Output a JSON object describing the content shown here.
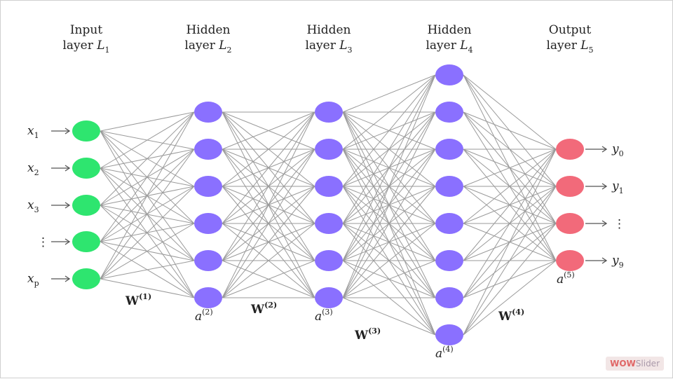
{
  "layers": [
    {
      "title": "Input",
      "subtitle": "layer",
      "symbol": "L",
      "sub": "1",
      "color": "#2ee56f",
      "nodes": 5
    },
    {
      "title": "Hidden",
      "subtitle": "layer",
      "symbol": "L",
      "sub": "2",
      "color": "#8a70ff",
      "nodes": 6
    },
    {
      "title": "Hidden",
      "subtitle": "layer",
      "symbol": "L",
      "sub": "3",
      "color": "#8a70ff",
      "nodes": 6
    },
    {
      "title": "Hidden",
      "subtitle": "layer",
      "symbol": "L",
      "sub": "4",
      "color": "#8a70ff",
      "nodes": 8
    },
    {
      "title": "Output",
      "subtitle": "layer",
      "symbol": "L",
      "sub": "5",
      "color": "#f26a7a",
      "nodes": 4
    }
  ],
  "inputs": [
    {
      "base": "x",
      "sub": "1"
    },
    {
      "base": "x",
      "sub": "2"
    },
    {
      "base": "x",
      "sub": "3"
    },
    {
      "base": "⋮",
      "sub": ""
    },
    {
      "base": "x",
      "sub": "p"
    }
  ],
  "outputs": [
    {
      "base": "y",
      "sub": "0"
    },
    {
      "base": "y",
      "sub": "1"
    },
    {
      "base": "⋮",
      "sub": ""
    },
    {
      "base": "y",
      "sub": "9"
    }
  ],
  "weights": [
    {
      "base": "W",
      "sup": "(1)"
    },
    {
      "base": "W",
      "sup": "(2)"
    },
    {
      "base": "W",
      "sup": "(3)"
    },
    {
      "base": "W",
      "sup": "(4)"
    }
  ],
  "activations": [
    {
      "base": "a",
      "sup": "(2)"
    },
    {
      "base": "a",
      "sup": "(3)"
    },
    {
      "base": "a",
      "sup": "(4)"
    },
    {
      "base": "a",
      "sup": "(5)"
    }
  ],
  "badge": {
    "part1": "WOW",
    "part2": "Slider"
  }
}
